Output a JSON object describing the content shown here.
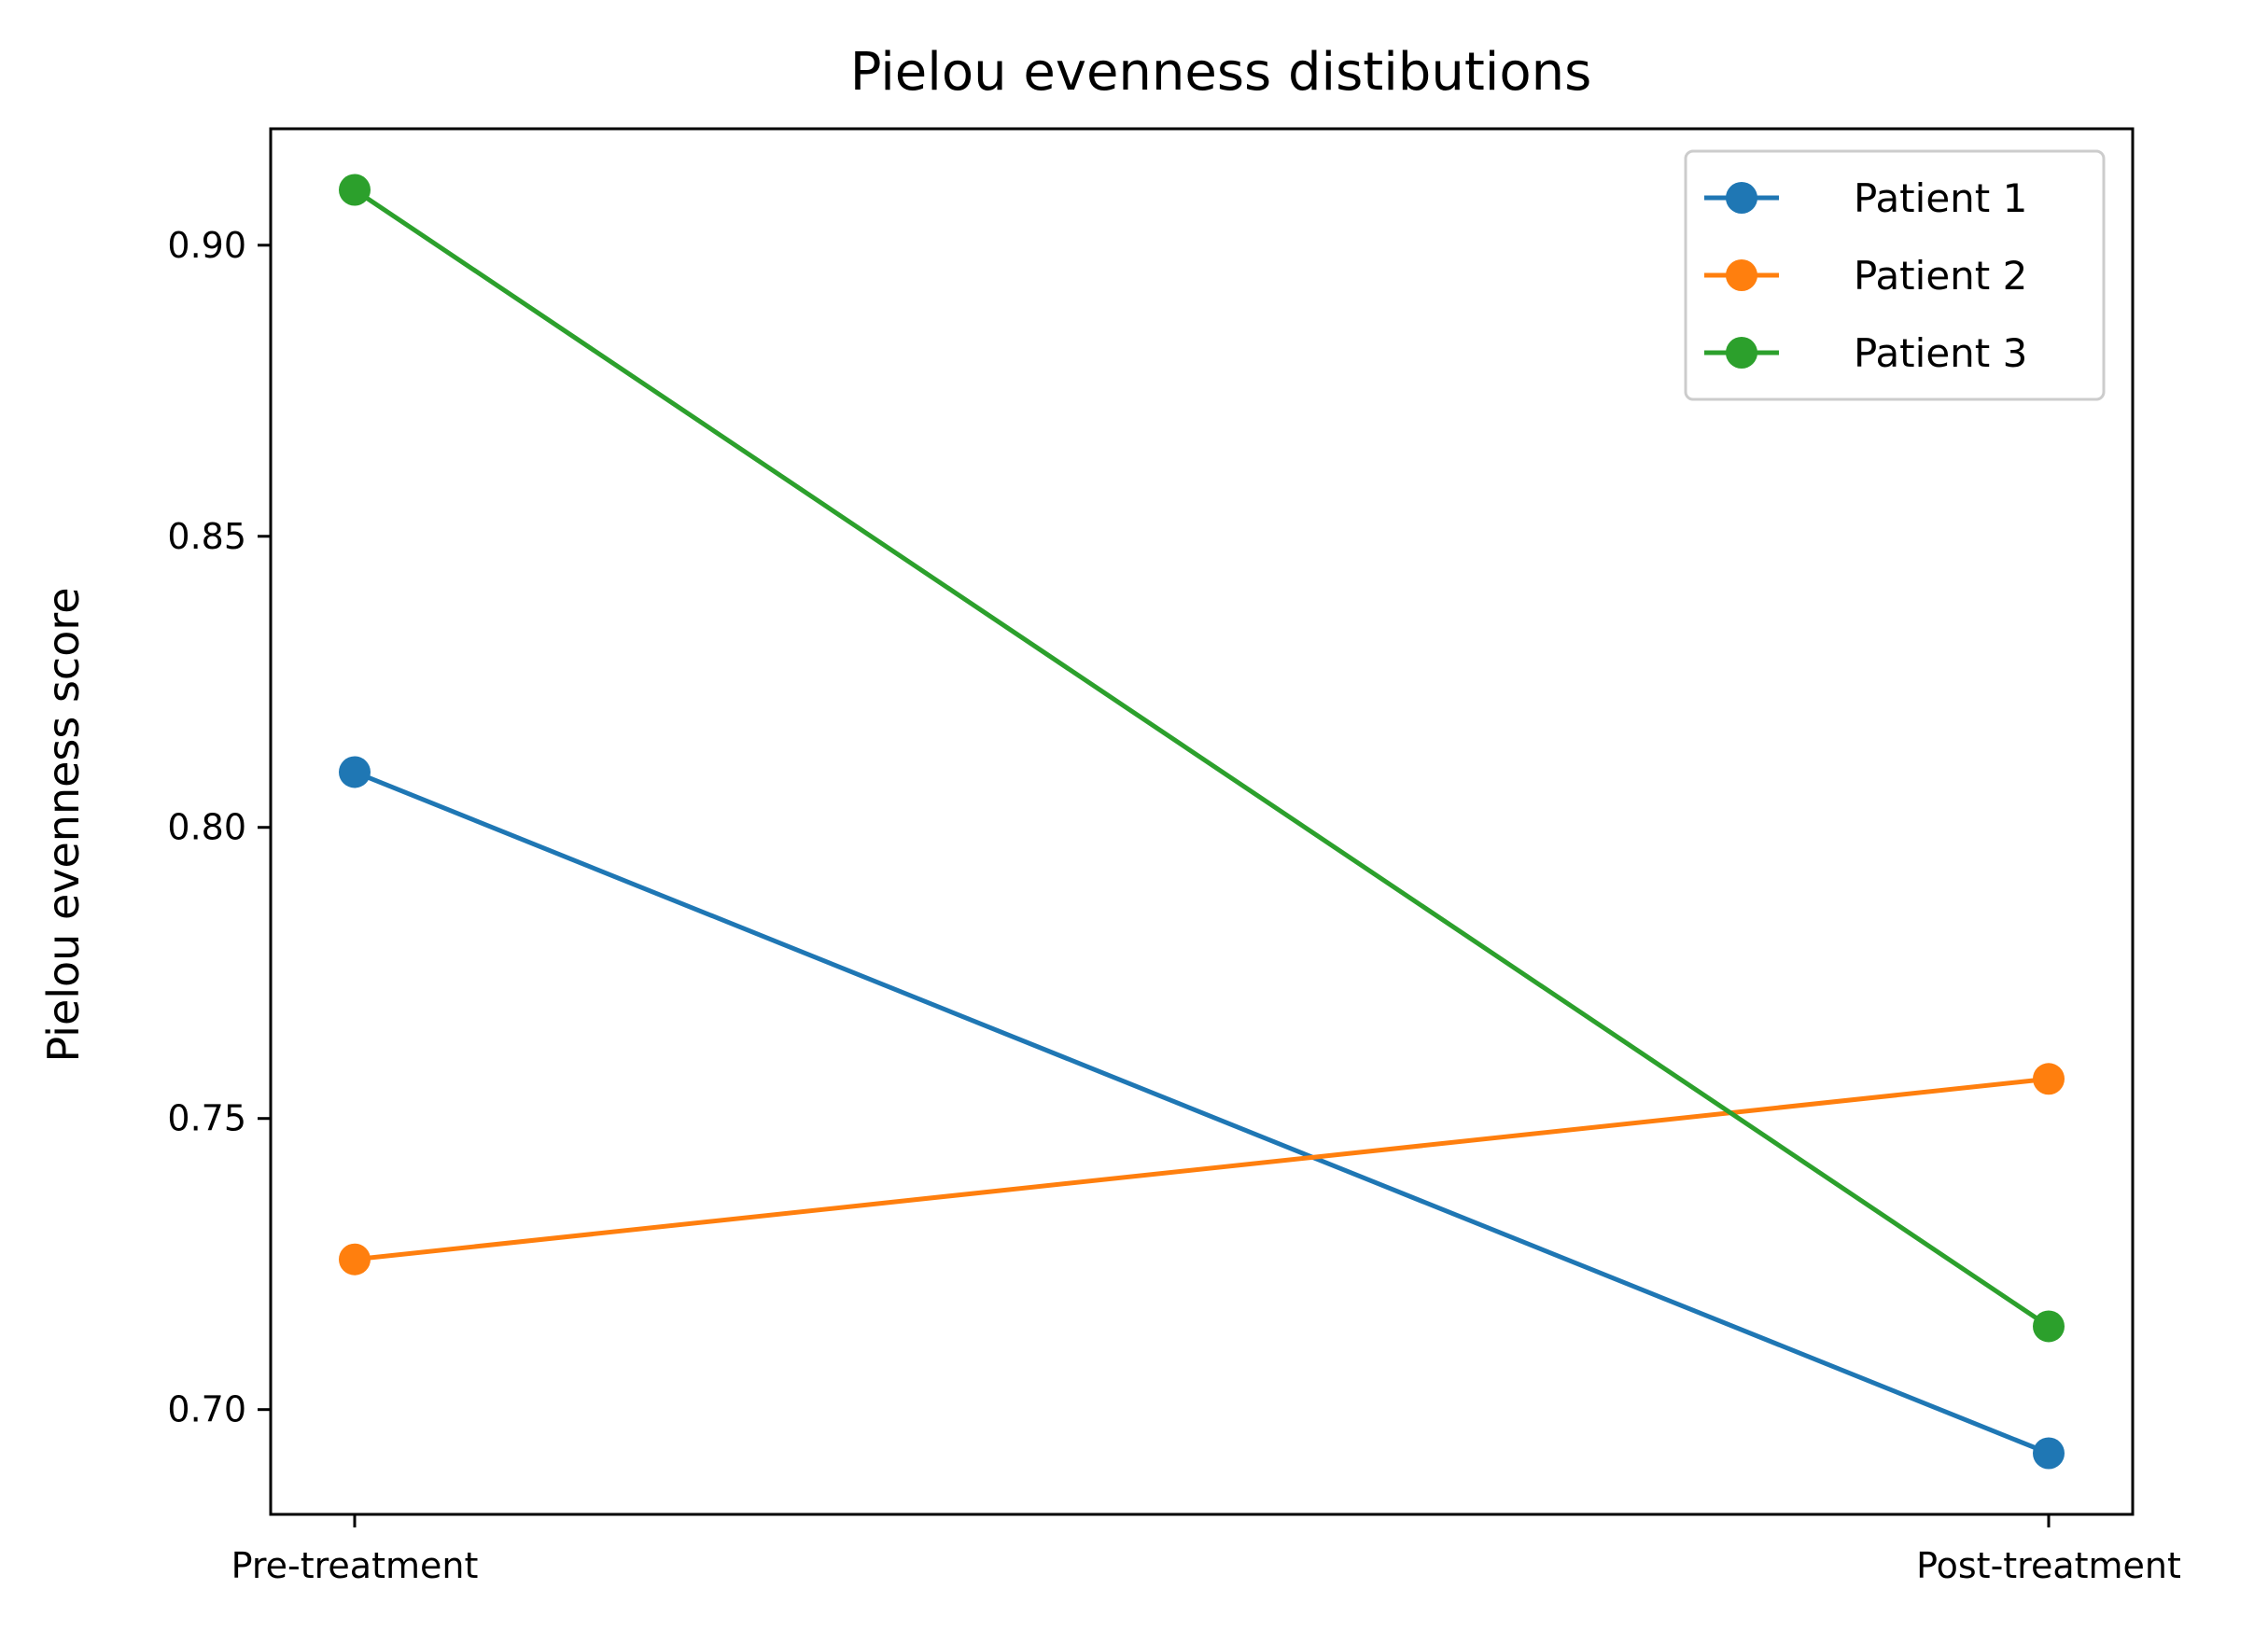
{
  "chart_data": {
    "type": "line",
    "title": "Pielou evenness distibutions",
    "xlabel": "",
    "ylabel": "Pielou evenness score",
    "categories": [
      "Pre-treatment",
      "Post-treatment"
    ],
    "ylim": [
      0.682,
      0.92
    ],
    "yticks": [
      "0.70",
      "0.75",
      "0.80",
      "0.85",
      "0.90"
    ],
    "ytick_values": [
      0.7,
      0.75,
      0.8,
      0.85,
      0.9
    ],
    "grid": false,
    "legend_position": "top-right",
    "series": [
      {
        "name": "Patient 1",
        "values": [
          0.8095,
          0.6925
        ],
        "color": "#1f77b4"
      },
      {
        "name": "Patient 2",
        "values": [
          0.7258,
          0.7568
        ],
        "color": "#ff7f0e"
      },
      {
        "name": "Patient 3",
        "values": [
          0.9095,
          0.7143
        ],
        "color": "#2ca02c"
      }
    ]
  }
}
